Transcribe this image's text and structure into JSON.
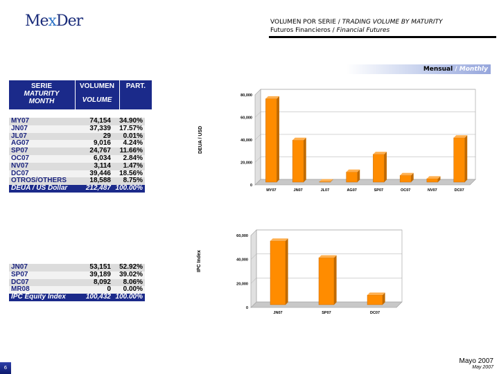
{
  "logo": {
    "part1": "Me",
    "part2": "x",
    "part3": "Der"
  },
  "header": {
    "title_es": "VOLUMEN POR SERIE",
    "title_sep": " / ",
    "title_en": "TRADING VOLUME BY MATURITY",
    "subtitle_es": "Futuros Financieros",
    "subtitle_sep": " / ",
    "subtitle_en": "Financial Futures"
  },
  "banner": {
    "es": "Mensual",
    "sep": " / ",
    "en": "Monthly"
  },
  "table_header": {
    "col1_es": "SERIE",
    "col1_en_line1": "MATURITY",
    "col1_en_line2": "MONTH",
    "col2_es": "VOLUMEN",
    "col2_en": "VOLUME",
    "col3": "PART."
  },
  "deua_table": {
    "rows": [
      {
        "serie": "MY07",
        "volume": "74,154",
        "part": "34.90%"
      },
      {
        "serie": "JN07",
        "volume": "37,339",
        "part": "17.57%"
      },
      {
        "serie": "JL07",
        "volume": "29",
        "part": "0.01%"
      },
      {
        "serie": "AG07",
        "volume": "9,016",
        "part": "4.24%"
      },
      {
        "serie": "SP07",
        "volume": "24,767",
        "part": "11.66%"
      },
      {
        "serie": "OC07",
        "volume": "6,034",
        "part": "2.84%"
      },
      {
        "serie": "NV07",
        "volume": "3,114",
        "part": "1.47%"
      },
      {
        "serie": "DC07",
        "volume": "39,446",
        "part": "18.56%"
      },
      {
        "serie": "OTROS/OTHERS",
        "volume": "18,588",
        "part": "8.75%"
      }
    ],
    "total": {
      "serie": "DEUA / US Dollar",
      "volume": "212,487",
      "part": "100.00%"
    }
  },
  "ipc_table": {
    "rows": [
      {
        "serie": "JN07",
        "volume": "53,151",
        "part": "52.92%"
      },
      {
        "serie": "SP07",
        "volume": "39,189",
        "part": "39.02%"
      },
      {
        "serie": "DC07",
        "volume": "8,092",
        "part": "8.06%"
      },
      {
        "serie": "MR08",
        "volume": "0",
        "part": "0.00%"
      }
    ],
    "total": {
      "serie": "IPC Equity Index",
      "volume": "100,432",
      "part": "100.00%"
    }
  },
  "chart_data": [
    {
      "type": "bar",
      "ylabel": "DEUA / USD",
      "categories": [
        "MY07",
        "JN07",
        "JL07",
        "AG07",
        "SP07",
        "OC07",
        "NV07",
        "DC07"
      ],
      "values": [
        74154,
        37339,
        29,
        9016,
        24767,
        6034,
        3114,
        39446
      ],
      "ylim": [
        0,
        80000
      ],
      "yticks": [
        "0",
        "20,000",
        "40,000",
        "60,000",
        "80,000"
      ],
      "bar_color": "#ff8c00",
      "grid": true
    },
    {
      "type": "bar",
      "ylabel": "IPC Index",
      "categories": [
        "JN07",
        "SP07",
        "DC07"
      ],
      "values": [
        53151,
        39189,
        8092
      ],
      "ylim": [
        0,
        60000
      ],
      "yticks": [
        "0",
        "20,000",
        "40,000",
        "60,000"
      ],
      "bar_color": "#ff8c00",
      "grid": true
    }
  ],
  "footer": {
    "date_es": "Mayo 2007",
    "date_en": "May 2007"
  },
  "page_number": "6"
}
